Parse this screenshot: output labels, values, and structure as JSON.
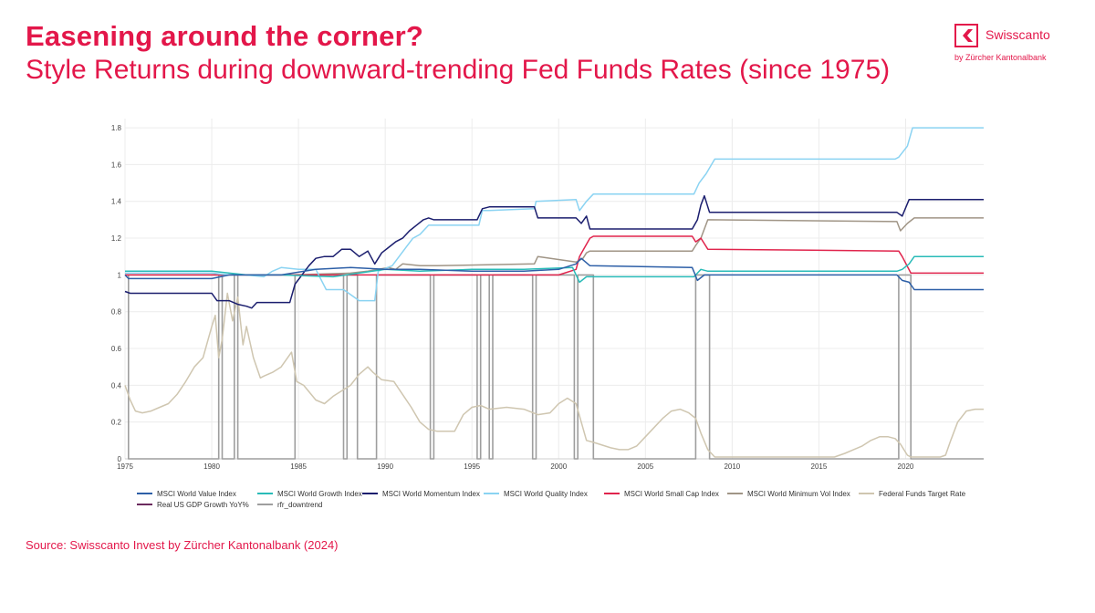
{
  "header": {
    "title": "Easening around the corner?",
    "subtitle": "Style Returns during downward-trending Fed Funds Rates (since 1975)"
  },
  "logo": {
    "name": "Swisscanto",
    "tagline": "by Zürcher Kantonalbank",
    "color": "#e3174a"
  },
  "footer": {
    "source": "Source: Swisscanto Invest by Zürcher Kantonalbank (2024)"
  },
  "chart_data": {
    "type": "line",
    "xlim": [
      1975,
      2024.5
    ],
    "ylim": [
      0,
      1.85
    ],
    "xticks": [
      1975,
      1980,
      1985,
      1990,
      1995,
      2000,
      2005,
      2010,
      2015,
      2020
    ],
    "yticks": [
      0,
      0.2,
      0.4,
      0.6,
      0.8,
      1,
      1.2,
      1.4,
      1.6,
      1.8
    ],
    "ytick_labels": [
      "0",
      "0.2",
      "0.4",
      "0.6",
      "0.8",
      "1",
      "1.2",
      "1.4",
      "1.6",
      "1.8"
    ],
    "grid": true,
    "legend_position": "bottom",
    "series": [
      {
        "name": "rfr_downtrend",
        "color": "#9e9e9e",
        "shape": "hv",
        "x": [
          1975,
          1975.2,
          1980.1,
          1980.4,
          1980.6,
          1981.0,
          1981.3,
          1981.5,
          1984.6,
          1984.8,
          1987.6,
          1987.8,
          1988.2,
          1988.4,
          1989.3,
          1989.5,
          1992.6,
          1992.8,
          1995.3,
          1995.5,
          1996.0,
          1996.2,
          1998.5,
          1998.7,
          2000.9,
          2001.1,
          2001.8,
          2002.0,
          2007.7,
          2007.9,
          2008.7,
          2008.9,
          2019.4,
          2019.6,
          2020.3,
          2020.5,
          2024.5
        ],
        "y": [
          1,
          0,
          0,
          1,
          0,
          0,
          1,
          0,
          0,
          1,
          0,
          1,
          1,
          0,
          0,
          1,
          0,
          1,
          0,
          1,
          0,
          1,
          0,
          1,
          0,
          1,
          1,
          0,
          0,
          1,
          0,
          0,
          0,
          1,
          0,
          0,
          0
        ]
      },
      {
        "name": "Real US GDP Growth YoY%",
        "color": "#6b2a5e",
        "x": [],
        "y": []
      },
      {
        "name": "Federal Funds Target Rate",
        "color": "#cfc6b0",
        "x": [
          1975,
          1975.3,
          1975.6,
          1976,
          1976.5,
          1977,
          1977.5,
          1978,
          1978.5,
          1979,
          1979.5,
          1980,
          1980.2,
          1980.4,
          1980.6,
          1980.9,
          1981.2,
          1981.5,
          1981.8,
          1982,
          1982.4,
          1982.8,
          1983,
          1983.5,
          1984,
          1984.6,
          1984.9,
          1985.3,
          1986,
          1986.5,
          1987,
          1987.5,
          1988,
          1988.5,
          1989,
          1989.3,
          1989.8,
          1990.5,
          1991,
          1991.5,
          1992,
          1992.5,
          1993,
          1994,
          1994.5,
          1995,
          1995.5,
          1996,
          1997,
          1998,
          1998.8,
          1999.5,
          2000,
          2000.5,
          2001,
          2001.3,
          2001.6,
          2002,
          2003,
          2003.5,
          2004,
          2004.5,
          2005,
          2005.5,
          2006,
          2006.5,
          2007,
          2007.5,
          2007.9,
          2008.2,
          2008.6,
          2009,
          2010,
          2014,
          2015.9,
          2016.5,
          2017,
          2017.5,
          2018,
          2018.5,
          2019,
          2019.4,
          2019.7,
          2020.1,
          2020.3,
          2021,
          2022,
          2022.3,
          2022.6,
          2023,
          2023.5,
          2024,
          2024.5
        ],
        "y": [
          0.4,
          0.32,
          0.26,
          0.25,
          0.26,
          0.28,
          0.3,
          0.35,
          0.42,
          0.5,
          0.55,
          0.72,
          0.78,
          0.55,
          0.65,
          0.9,
          0.75,
          0.88,
          0.62,
          0.72,
          0.55,
          0.44,
          0.45,
          0.47,
          0.5,
          0.58,
          0.42,
          0.4,
          0.32,
          0.3,
          0.34,
          0.37,
          0.4,
          0.46,
          0.5,
          0.47,
          0.43,
          0.42,
          0.35,
          0.28,
          0.2,
          0.16,
          0.15,
          0.15,
          0.24,
          0.28,
          0.29,
          0.27,
          0.28,
          0.27,
          0.24,
          0.25,
          0.3,
          0.33,
          0.3,
          0.2,
          0.1,
          0.09,
          0.06,
          0.05,
          0.05,
          0.07,
          0.12,
          0.17,
          0.22,
          0.26,
          0.27,
          0.25,
          0.22,
          0.14,
          0.05,
          0.01,
          0.01,
          0.01,
          0.01,
          0.03,
          0.05,
          0.07,
          0.1,
          0.12,
          0.12,
          0.11,
          0.08,
          0.02,
          0.01,
          0.01,
          0.01,
          0.02,
          0.1,
          0.2,
          0.26,
          0.27,
          0.27
        ]
      },
      {
        "name": "MSCI World Minimum Vol Index",
        "color": "#a09586",
        "x": [
          1975,
          1984.5,
          1988,
          1989,
          1990.2,
          1990.6,
          1991,
          1992,
          1993,
          1998.6,
          1998.8,
          2001,
          2001.4,
          2001.6,
          2001.8,
          2007.7,
          2007.9,
          2008.2,
          2008.6,
          2019.5,
          2019.7,
          2020.1,
          2020.5,
          2024.5
        ],
        "y": [
          1.0,
          1.0,
          1.01,
          1.02,
          1.04,
          1.03,
          1.06,
          1.05,
          1.05,
          1.06,
          1.1,
          1.07,
          1.09,
          1.12,
          1.13,
          1.13,
          1.16,
          1.2,
          1.3,
          1.29,
          1.24,
          1.28,
          1.31,
          1.31
        ]
      },
      {
        "name": "MSCI World Small Cap Index",
        "color": "#e0244c",
        "x": [
          1975,
          1986,
          1988,
          1990,
          1993,
          2000,
          2001,
          2001.2,
          2001.5,
          2001.8,
          2002,
          2007.7,
          2007.9,
          2008.2,
          2008.6,
          2019.6,
          2019.8,
          2020.3,
          2024.5
        ],
        "y": [
          1.0,
          1.0,
          1.0,
          1.0,
          1.0,
          1.0,
          1.03,
          1.1,
          1.15,
          1.2,
          1.21,
          1.21,
          1.18,
          1.2,
          1.14,
          1.13,
          1.1,
          1.01,
          1.01
        ]
      },
      {
        "name": "MSCI World Quality Index",
        "color": "#8ad3f2",
        "x": [
          1975,
          1980,
          1981,
          1982,
          1983,
          1983.5,
          1984,
          1985,
          1986,
          1986.6,
          1987.6,
          1988.5,
          1989.4,
          1989.6,
          1990.4,
          1990.8,
          1991.2,
          1991.6,
          1992,
          1992.5,
          1993,
          1995.4,
          1995.6,
          1996,
          1998.6,
          1998.7,
          2001,
          2001.2,
          2001.6,
          2002,
          2007.8,
          2008.1,
          2008.5,
          2009,
          2019.4,
          2019.6,
          2020.1,
          2020.4,
          2024.5
        ],
        "y": [
          1.01,
          1.01,
          1.0,
          1.0,
          0.99,
          1.02,
          1.04,
          1.03,
          1.03,
          0.92,
          0.92,
          0.86,
          0.86,
          1.02,
          1.05,
          1.1,
          1.15,
          1.2,
          1.22,
          1.27,
          1.27,
          1.27,
          1.35,
          1.35,
          1.36,
          1.4,
          1.41,
          1.35,
          1.4,
          1.44,
          1.44,
          1.5,
          1.55,
          1.63,
          1.63,
          1.64,
          1.7,
          1.8,
          1.8
        ]
      },
      {
        "name": "MSCI World Momentum Index",
        "color": "#1b1e6e",
        "x": [
          1975,
          1975.3,
          1980,
          1980.3,
          1981,
          1981.5,
          1982,
          1982.3,
          1982.6,
          1983,
          1984.5,
          1984.8,
          1985.2,
          1985.6,
          1986,
          1986.5,
          1987,
          1987.5,
          1988,
          1988.5,
          1989,
          1989.4,
          1989.8,
          1990.2,
          1990.6,
          1991,
          1991.4,
          1991.8,
          1992.2,
          1992.5,
          1992.8,
          1995.3,
          1995.6,
          1996,
          1998.6,
          1998.8,
          2001,
          2001.3,
          2001.6,
          2001.8,
          2007.7,
          2008,
          2008.2,
          2008.4,
          2008.7,
          2019.5,
          2019.8,
          2020.2,
          2020.5,
          2024.5
        ],
        "y": [
          0.91,
          0.9,
          0.9,
          0.86,
          0.86,
          0.84,
          0.83,
          0.82,
          0.85,
          0.85,
          0.85,
          0.95,
          1.0,
          1.05,
          1.09,
          1.1,
          1.1,
          1.14,
          1.14,
          1.1,
          1.13,
          1.06,
          1.12,
          1.15,
          1.18,
          1.2,
          1.24,
          1.27,
          1.3,
          1.31,
          1.3,
          1.3,
          1.36,
          1.37,
          1.37,
          1.31,
          1.31,
          1.28,
          1.32,
          1.25,
          1.25,
          1.3,
          1.38,
          1.43,
          1.34,
          1.34,
          1.32,
          1.41,
          1.41,
          1.41
        ]
      },
      {
        "name": "MSCI World Growth Index",
        "color": "#29bbb8",
        "x": [
          1975,
          1980,
          1982,
          1984,
          1987,
          1990,
          1992,
          1995,
          1998,
          2000.8,
          2001.2,
          2001.6,
          2002,
          2007.8,
          2008.2,
          2008.6,
          2019.5,
          2019.8,
          2020.2,
          2020.5,
          2024.5
        ],
        "y": [
          1.02,
          1.02,
          1.0,
          1.0,
          0.99,
          1.03,
          1.02,
          1.03,
          1.03,
          1.04,
          0.96,
          0.99,
          0.99,
          0.99,
          1.03,
          1.02,
          1.02,
          1.03,
          1.06,
          1.1,
          1.1
        ]
      },
      {
        "name": "MSCI World Value Index",
        "color": "#2d5fa7",
        "x": [
          1975,
          1975.2,
          1980,
          1981,
          1984,
          1986,
          1988,
          1990,
          1992,
          1995,
          1998,
          2000,
          2001,
          2001.3,
          2001.8,
          2007.7,
          2008,
          2008.4,
          2008.8,
          2019.5,
          2019.8,
          2020.2,
          2020.5,
          2024.5
        ],
        "y": [
          1.0,
          0.98,
          0.98,
          1.0,
          1.0,
          1.03,
          1.04,
          1.03,
          1.03,
          1.02,
          1.02,
          1.03,
          1.06,
          1.09,
          1.05,
          1.04,
          0.97,
          1.0,
          1.0,
          1.0,
          0.97,
          0.96,
          0.92,
          0.92
        ]
      }
    ],
    "legend": [
      {
        "label": "MSCI World Value Index",
        "color": "#2d5fa7"
      },
      {
        "label": "MSCI World Growth Index",
        "color": "#29bbb8"
      },
      {
        "label": "MSCI World Momentum Index",
        "color": "#1b1e6e"
      },
      {
        "label": "MSCI World Quality Index",
        "color": "#8ad3f2"
      },
      {
        "label": "MSCI World Small Cap Index",
        "color": "#e0244c"
      },
      {
        "label": "MSCI World Minimum Vol Index",
        "color": "#a09586"
      },
      {
        "label": "Federal Funds Target Rate",
        "color": "#cfc6b0"
      },
      {
        "label": "Real US GDP Growth YoY%",
        "color": "#6b2a5e"
      },
      {
        "label": "rfr_downtrend",
        "color": "#9e9e9e"
      }
    ]
  }
}
